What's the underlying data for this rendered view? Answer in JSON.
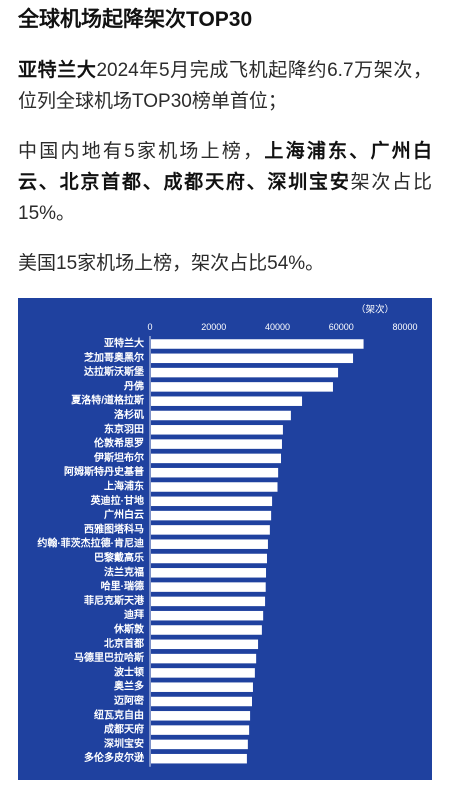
{
  "title": "全球机场起降架次TOP30",
  "paragraphs": [
    {
      "lines": [
        [
          {
            "text": "亚特兰大",
            "bold": true
          },
          {
            "text": "2024年5月完成飞机起降约6.7万架次，",
            "bold": false
          }
        ],
        [
          {
            "text": "位列全球机场TOP30榜单首位；",
            "bold": false
          }
        ]
      ]
    },
    {
      "lines": [
        [
          {
            "text": "中国内地有5家机场上榜，",
            "bold": false
          },
          {
            "text": "上海浦东、广州白",
            "bold": true
          }
        ],
        [
          {
            "text": "云、北京首都、成都天府、深圳宝安",
            "bold": true
          },
          {
            "text": "架次占比",
            "bold": false
          }
        ],
        [
          {
            "text": "15%。",
            "bold": false
          }
        ]
      ]
    },
    {
      "lines": [
        [
          {
            "text": "美国15家机场上榜，架次占比54%。",
            "bold": false
          }
        ]
      ]
    }
  ],
  "chart_data": {
    "type": "bar",
    "orientation": "horizontal",
    "categories": [
      "亚特兰大",
      "芝加哥奥黑尔",
      "达拉斯沃斯堡",
      "丹佛",
      "夏洛特/道格拉斯",
      "洛杉矶",
      "东京羽田",
      "伦敦希思罗",
      "伊斯坦布尔",
      "阿姆斯特丹史基普",
      "上海浦东",
      "英迪拉·甘地",
      "广州白云",
      "西雅图塔科马",
      "约翰·菲茨杰拉德·肯尼迪",
      "巴黎戴高乐",
      "法兰克福",
      "哈里·瑞德",
      "菲尼克斯天港",
      "迪拜",
      "休斯敦",
      "北京首都",
      "马德里巴拉哈斯",
      "波士顿",
      "奥兰多",
      "迈阿密",
      "纽瓦克自由",
      "成都天府",
      "深圳宝安",
      "多伦多皮尔逊"
    ],
    "values": [
      67000,
      63700,
      59000,
      57400,
      47700,
      44200,
      41700,
      41400,
      41100,
      40200,
      40000,
      38300,
      38000,
      37600,
      37000,
      36700,
      36400,
      36300,
      36100,
      35500,
      35100,
      33900,
      33300,
      32900,
      32300,
      32000,
      31400,
      31100,
      30700,
      30400
    ],
    "xlabel": "（架次）",
    "xlim": [
      0,
      80000
    ],
    "xticks": [
      0,
      20000,
      40000,
      60000,
      80000
    ],
    "grid": false,
    "colors": {
      "background": "#1f419f",
      "bar": "#ffffff",
      "text": "#ffffff"
    }
  }
}
